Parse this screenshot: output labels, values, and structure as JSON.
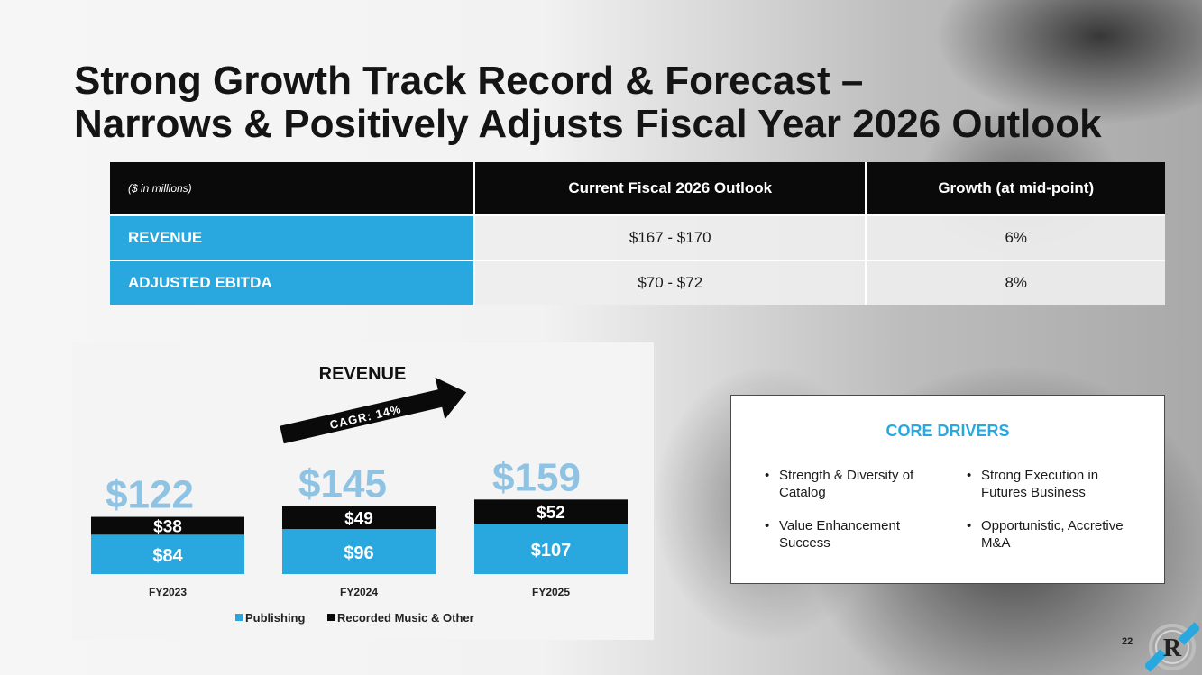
{
  "slide": {
    "title_line1": "Strong Growth Track Record & Forecast –",
    "title_line2": "Narrows & Positively Adjusts Fiscal Year 2026 Outlook",
    "page_number": "22"
  },
  "outlook_table": {
    "units_label": "($ in millions)",
    "columns": [
      "Current Fiscal 2026 Outlook",
      "Growth (at mid-point)"
    ],
    "rows": [
      {
        "label": "REVENUE",
        "outlook": "$167 - $170",
        "growth": "6%"
      },
      {
        "label": "ADJUSTED EBITDA",
        "outlook": "$70 - $72",
        "growth": "8%"
      }
    ]
  },
  "chart_data": {
    "type": "bar",
    "stacked": true,
    "title": "REVENUE",
    "categories": [
      "FY2023",
      "FY2024",
      "FY2025"
    ],
    "series": [
      {
        "name": "Publishing",
        "values": [
          84,
          96,
          107
        ],
        "labels": [
          "$84",
          "$96",
          "$107"
        ],
        "color": "#29a8e0"
      },
      {
        "name": "Recorded Music & Other",
        "values": [
          38,
          49,
          52
        ],
        "labels": [
          "$38",
          "$49",
          "$52"
        ],
        "color": "#0a0a0a"
      }
    ],
    "totals": [
      "$122",
      "$145",
      "$159"
    ],
    "annotation": "CAGR: 14%",
    "legend_position": "bottom",
    "total_color": "#8ec3e3"
  },
  "core_drivers": {
    "title": "CORE DRIVERS",
    "items": [
      "Strength & Diversity of Catalog",
      "Strong Execution in Futures Business",
      "Value Enhancement Success",
      "Opportunistic, Accretive M&A"
    ]
  },
  "colors": {
    "accent": "#29a8e0",
    "dark": "#0a0a0a"
  },
  "icons": {
    "logo": "r-monogram-logo-icon"
  }
}
